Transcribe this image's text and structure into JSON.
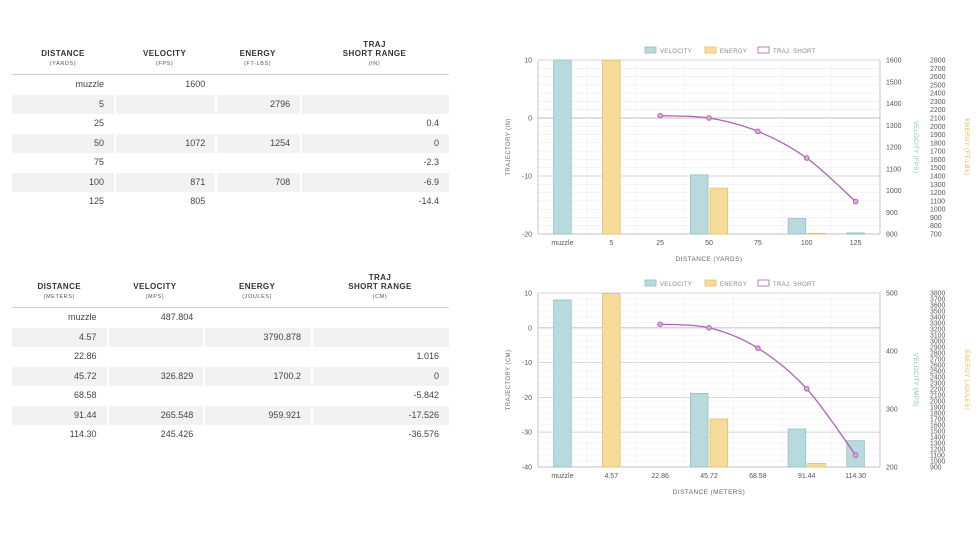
{
  "table_yards": {
    "headers": [
      {
        "title": "DISTANCE",
        "unit": "(YARDS)"
      },
      {
        "title": "VELOCITY",
        "unit": "(FPS)"
      },
      {
        "title": "ENERGY",
        "unit": "(FT-LBS)"
      },
      {
        "title": "TRAJ\nSHORT RANGE",
        "unit": "(IN)"
      }
    ],
    "rows": [
      [
        "muzzle",
        "1600",
        "",
        ""
      ],
      [
        "5",
        "",
        "2796",
        ""
      ],
      [
        "25",
        "",
        "",
        "0.4"
      ],
      [
        "50",
        "1072",
        "1254",
        "0"
      ],
      [
        "75",
        "",
        "",
        "-2.3"
      ],
      [
        "100",
        "871",
        "708",
        "-6.9"
      ],
      [
        "125",
        "805",
        "",
        "-14.4"
      ]
    ]
  },
  "table_meters": {
    "headers": [
      {
        "title": "DISTANCE",
        "unit": "(METERS)"
      },
      {
        "title": "VELOCITY",
        "unit": "(MPS)"
      },
      {
        "title": "ENERGY",
        "unit": "(JOULES)"
      },
      {
        "title": "TRAJ\nSHORT RANGE",
        "unit": "(CM)"
      }
    ],
    "rows": [
      [
        "muzzle",
        "487.804",
        "",
        ""
      ],
      [
        "4.57",
        "",
        "3790.878",
        ""
      ],
      [
        "22.86",
        "",
        "",
        "1.016"
      ],
      [
        "45.72",
        "326.829",
        "1700.2",
        "0"
      ],
      [
        "68.58",
        "",
        "",
        "-5.842"
      ],
      [
        "91.44",
        "265.548",
        "959.921",
        "-17.526"
      ],
      [
        "114.30",
        "245.426",
        "",
        "-36.576"
      ]
    ]
  },
  "chart_data": [
    {
      "type": "bar",
      "categories": [
        "muzzle",
        "5",
        "25",
        "50",
        "75",
        "100",
        "125"
      ],
      "xlabel": "DISTANCE (YARDS)",
      "legend": [
        "VELOCITY",
        "ENERGY",
        "TRAJ. SHORT"
      ],
      "legend_position": "top-center",
      "colors": {
        "velocity": "#b9dadc",
        "velocity_edge": "#8fc1c5",
        "energy": "#f5dc9a",
        "energy_edge": "#e6c067",
        "traj": "#b060b4"
      },
      "axes": {
        "traj": {
          "label": "TRAJECTORY (IN)",
          "ylim": [
            -20,
            10
          ],
          "ticks": [
            10,
            0,
            -10,
            -20
          ]
        },
        "velocity": {
          "label": "VELOCITY (FPS)",
          "ylim": [
            800,
            1600
          ],
          "ticks": [
            1600,
            1500,
            1400,
            1300,
            1200,
            1100,
            1000,
            900,
            800
          ]
        },
        "energy": {
          "label": "ENERGY (FT-LBS)",
          "ylim": [
            700,
            2800
          ],
          "ticks": [
            2800,
            2700,
            2600,
            2500,
            2400,
            2300,
            2200,
            2100,
            2000,
            1900,
            1800,
            1700,
            1600,
            1500,
            1400,
            1300,
            1200,
            1100,
            1000,
            900,
            800,
            700
          ]
        }
      },
      "series": [
        {
          "name": "VELOCITY",
          "axis": "velocity",
          "kind": "bar",
          "values": [
            1600,
            null,
            null,
            1072,
            null,
            871,
            805
          ]
        },
        {
          "name": "ENERGY",
          "axis": "energy",
          "kind": "bar",
          "values": [
            null,
            2796,
            null,
            1254,
            null,
            708,
            null
          ]
        },
        {
          "name": "TRAJ. SHORT",
          "axis": "traj",
          "kind": "line",
          "values": [
            null,
            null,
            0.4,
            0,
            -2.3,
            -6.9,
            -14.4
          ]
        }
      ]
    },
    {
      "type": "bar",
      "categories": [
        "muzzle",
        "4.57",
        "22.86",
        "45.72",
        "68.58",
        "91.44",
        "114.30"
      ],
      "xlabel": "DISTANCE (METERS)",
      "legend": [
        "VELOCITY",
        "ENERGY",
        "TRAJ. SHORT"
      ],
      "legend_position": "top-center",
      "colors": {
        "velocity": "#b9dadc",
        "velocity_edge": "#8fc1c5",
        "energy": "#f5dc9a",
        "energy_edge": "#e6c067",
        "traj": "#b060b4"
      },
      "axes": {
        "traj": {
          "label": "TRAJECTORY (CM)",
          "ylim": [
            -40,
            10
          ],
          "ticks": [
            10,
            0,
            -10,
            -20,
            -30,
            -40
          ]
        },
        "velocity": {
          "label": "VELOCITY (MPS)",
          "ylim": [
            200,
            500
          ],
          "ticks": [
            500,
            400,
            300,
            200
          ]
        },
        "energy": {
          "label": "ENERGY (JOULES)",
          "ylim": [
            900,
            3800
          ],
          "ticks": [
            3800,
            3700,
            3600,
            3500,
            3400,
            3300,
            3200,
            3100,
            3000,
            2900,
            2800,
            2700,
            2600,
            2500,
            2400,
            2300,
            2200,
            2100,
            2000,
            1900,
            1800,
            1700,
            1600,
            1500,
            1400,
            1300,
            1200,
            1100,
            1000,
            900
          ]
        }
      },
      "series": [
        {
          "name": "VELOCITY",
          "axis": "velocity",
          "kind": "bar",
          "values": [
            487.804,
            null,
            null,
            326.829,
            null,
            265.548,
            245.426
          ]
        },
        {
          "name": "ENERGY",
          "axis": "energy",
          "kind": "bar",
          "values": [
            null,
            3790.878,
            null,
            1700.2,
            null,
            959.921,
            null
          ]
        },
        {
          "name": "TRAJ. SHORT",
          "axis": "traj",
          "kind": "line",
          "values": [
            null,
            null,
            1.016,
            0,
            -5.842,
            -17.526,
            -36.576
          ]
        }
      ]
    }
  ]
}
